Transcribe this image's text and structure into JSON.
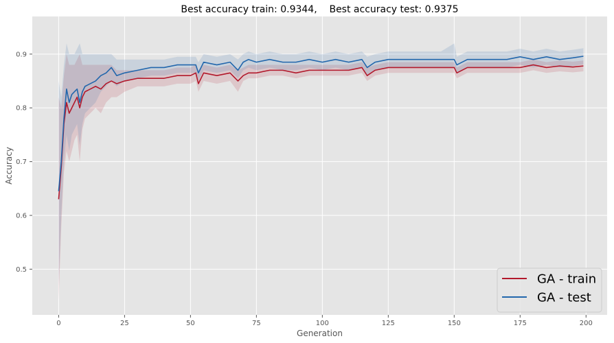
{
  "chart_data": {
    "type": "line",
    "title": "Best accuracy train: 0.9344,    Best accuracy test: 0.9375",
    "xlabel": "Generation",
    "ylabel": "Accuracy",
    "xlim": [
      -10,
      208
    ],
    "ylim": [
      0.415,
      0.97
    ],
    "xticks": [
      0,
      25,
      50,
      75,
      100,
      125,
      150,
      175,
      200
    ],
    "yticks": [
      0.5,
      0.6,
      0.7,
      0.8,
      0.9
    ],
    "xtick_labels": [
      "0",
      "25",
      "50",
      "75",
      "100",
      "125",
      "150",
      "175",
      "200"
    ],
    "ytick_labels": [
      "0.5",
      "0.6",
      "0.7",
      "0.8",
      "0.9"
    ],
    "grid": true,
    "legend_position": "lower-right",
    "background": "#e5e5e5",
    "series": [
      {
        "name": "GA - train",
        "color": "#b2182b",
        "x": [
          0,
          1,
          2,
          3,
          4,
          5,
          6,
          7,
          8,
          9,
          10,
          12,
          14,
          16,
          18,
          20,
          22,
          25,
          30,
          35,
          40,
          45,
          50,
          52,
          53,
          55,
          60,
          65,
          68,
          70,
          72,
          75,
          80,
          85,
          90,
          95,
          100,
          105,
          110,
          115,
          117,
          120,
          125,
          130,
          135,
          140,
          145,
          150,
          151,
          155,
          160,
          165,
          170,
          175,
          180,
          185,
          190,
          195,
          199
        ],
        "y": [
          0.63,
          0.69,
          0.77,
          0.81,
          0.79,
          0.8,
          0.81,
          0.82,
          0.8,
          0.82,
          0.83,
          0.835,
          0.84,
          0.835,
          0.845,
          0.85,
          0.845,
          0.85,
          0.855,
          0.855,
          0.855,
          0.86,
          0.86,
          0.865,
          0.845,
          0.865,
          0.86,
          0.865,
          0.85,
          0.86,
          0.865,
          0.865,
          0.87,
          0.87,
          0.865,
          0.87,
          0.87,
          0.87,
          0.87,
          0.875,
          0.86,
          0.87,
          0.875,
          0.875,
          0.875,
          0.875,
          0.875,
          0.875,
          0.865,
          0.875,
          0.875,
          0.875,
          0.875,
          0.875,
          0.88,
          0.875,
          0.878,
          0.876,
          0.878
        ],
        "band_lower": [
          0.44,
          0.58,
          0.68,
          0.72,
          0.7,
          0.72,
          0.74,
          0.75,
          0.7,
          0.76,
          0.78,
          0.79,
          0.8,
          0.79,
          0.81,
          0.82,
          0.82,
          0.83,
          0.84,
          0.84,
          0.84,
          0.845,
          0.845,
          0.85,
          0.83,
          0.85,
          0.845,
          0.85,
          0.83,
          0.85,
          0.855,
          0.855,
          0.86,
          0.86,
          0.855,
          0.86,
          0.86,
          0.86,
          0.86,
          0.865,
          0.85,
          0.86,
          0.865,
          0.865,
          0.865,
          0.865,
          0.865,
          0.865,
          0.855,
          0.865,
          0.865,
          0.865,
          0.865,
          0.865,
          0.87,
          0.865,
          0.868,
          0.866,
          0.868
        ],
        "band_upper": [
          0.82,
          0.8,
          0.86,
          0.9,
          0.88,
          0.88,
          0.88,
          0.89,
          0.9,
          0.88,
          0.88,
          0.88,
          0.88,
          0.88,
          0.88,
          0.88,
          0.87,
          0.87,
          0.87,
          0.87,
          0.87,
          0.875,
          0.875,
          0.88,
          0.87,
          0.88,
          0.875,
          0.88,
          0.87,
          0.875,
          0.88,
          0.88,
          0.88,
          0.88,
          0.88,
          0.88,
          0.88,
          0.88,
          0.88,
          0.885,
          0.875,
          0.88,
          0.885,
          0.885,
          0.885,
          0.885,
          0.885,
          0.885,
          0.875,
          0.885,
          0.885,
          0.885,
          0.885,
          0.885,
          0.89,
          0.885,
          0.888,
          0.886,
          0.888
        ]
      },
      {
        "name": "GA - test",
        "color": "#2166ac",
        "x": [
          0,
          1,
          2,
          3,
          4,
          5,
          6,
          7,
          8,
          9,
          10,
          12,
          14,
          16,
          18,
          20,
          22,
          25,
          30,
          35,
          40,
          45,
          50,
          52,
          53,
          55,
          60,
          65,
          68,
          70,
          72,
          75,
          80,
          85,
          90,
          95,
          100,
          105,
          110,
          115,
          117,
          120,
          125,
          130,
          135,
          140,
          145,
          150,
          151,
          155,
          160,
          165,
          170,
          175,
          180,
          185,
          190,
          195,
          199
        ],
        "y": [
          0.645,
          0.7,
          0.78,
          0.835,
          0.81,
          0.825,
          0.83,
          0.835,
          0.81,
          0.83,
          0.84,
          0.845,
          0.85,
          0.86,
          0.865,
          0.875,
          0.86,
          0.865,
          0.87,
          0.875,
          0.875,
          0.88,
          0.88,
          0.88,
          0.865,
          0.885,
          0.88,
          0.885,
          0.87,
          0.885,
          0.89,
          0.885,
          0.89,
          0.885,
          0.885,
          0.89,
          0.885,
          0.89,
          0.885,
          0.89,
          0.875,
          0.885,
          0.89,
          0.89,
          0.89,
          0.89,
          0.89,
          0.89,
          0.88,
          0.89,
          0.89,
          0.89,
          0.89,
          0.895,
          0.89,
          0.895,
          0.89,
          0.893,
          0.896
        ],
        "band_lower": [
          0.47,
          0.6,
          0.7,
          0.75,
          0.72,
          0.75,
          0.76,
          0.77,
          0.73,
          0.77,
          0.79,
          0.8,
          0.81,
          0.83,
          0.84,
          0.85,
          0.84,
          0.85,
          0.855,
          0.86,
          0.86,
          0.865,
          0.865,
          0.865,
          0.85,
          0.87,
          0.865,
          0.87,
          0.855,
          0.87,
          0.875,
          0.87,
          0.875,
          0.87,
          0.87,
          0.875,
          0.87,
          0.875,
          0.87,
          0.875,
          0.86,
          0.87,
          0.875,
          0.875,
          0.875,
          0.875,
          0.875,
          0.875,
          0.865,
          0.875,
          0.875,
          0.875,
          0.875,
          0.88,
          0.875,
          0.88,
          0.875,
          0.878,
          0.881
        ],
        "band_upper": [
          0.85,
          0.82,
          0.88,
          0.92,
          0.9,
          0.9,
          0.9,
          0.91,
          0.92,
          0.9,
          0.9,
          0.9,
          0.9,
          0.9,
          0.9,
          0.9,
          0.89,
          0.89,
          0.89,
          0.89,
          0.89,
          0.895,
          0.895,
          0.895,
          0.885,
          0.9,
          0.895,
          0.9,
          0.89,
          0.9,
          0.905,
          0.9,
          0.905,
          0.9,
          0.9,
          0.905,
          0.9,
          0.905,
          0.9,
          0.905,
          0.895,
          0.9,
          0.905,
          0.905,
          0.905,
          0.905,
          0.905,
          0.92,
          0.895,
          0.905,
          0.905,
          0.905,
          0.905,
          0.91,
          0.905,
          0.91,
          0.905,
          0.908,
          0.911
        ]
      }
    ]
  }
}
